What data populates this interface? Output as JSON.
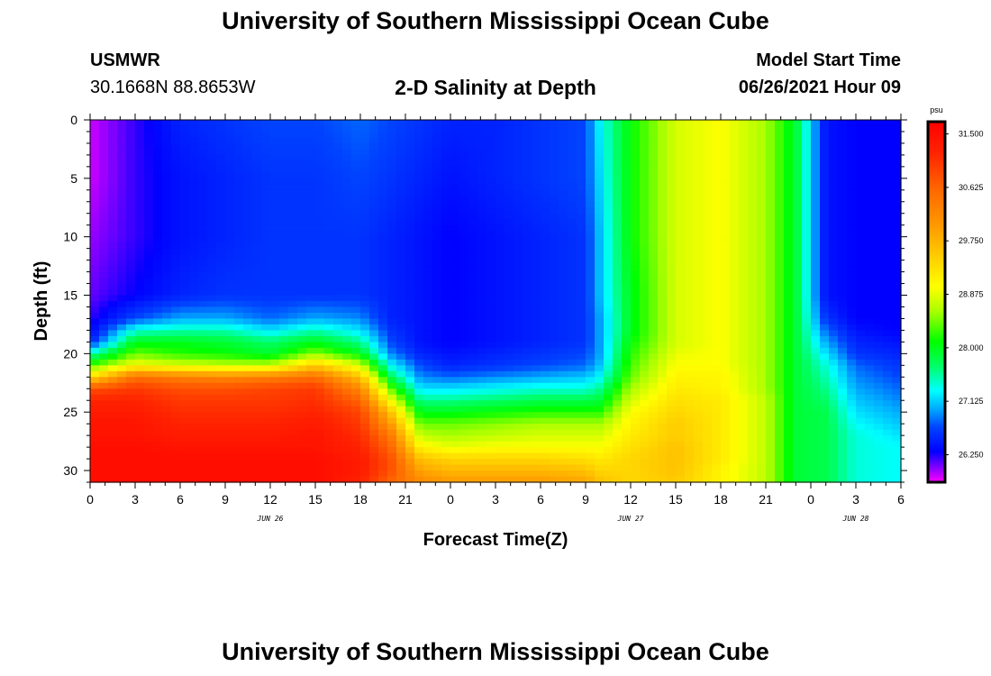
{
  "header": {
    "title": "University of Southern Mississippi Ocean Cube",
    "station": "USMWR",
    "coords": "30.1668N  88.8653W",
    "chart_title": "2-D Salinity at Depth",
    "start_label": "Model Start Time",
    "start_value": "06/26/2021 Hour 09"
  },
  "footer": {
    "title": "University of Southern Mississippi Ocean Cube"
  },
  "chart_data": {
    "type": "heatmap",
    "title": "2-D Salinity at Depth",
    "xlabel": "Forecast Time(Z)",
    "ylabel": "Depth (ft)",
    "x_range_hours": [
      0,
      54
    ],
    "ylim": [
      0,
      31
    ],
    "y_ticks": [
      0,
      5,
      10,
      15,
      20,
      25,
      30
    ],
    "x_ticks": [
      {
        "hour": 0,
        "label": "0"
      },
      {
        "hour": 3,
        "label": "3"
      },
      {
        "hour": 6,
        "label": "6"
      },
      {
        "hour": 9,
        "label": "9"
      },
      {
        "hour": 12,
        "label": "12"
      },
      {
        "hour": 15,
        "label": "15"
      },
      {
        "hour": 18,
        "label": "18"
      },
      {
        "hour": 21,
        "label": "21"
      },
      {
        "hour": 24,
        "label": "0"
      },
      {
        "hour": 27,
        "label": "3"
      },
      {
        "hour": 30,
        "label": "6"
      },
      {
        "hour": 33,
        "label": "9"
      },
      {
        "hour": 36,
        "label": "12"
      },
      {
        "hour": 39,
        "label": "15"
      },
      {
        "hour": 42,
        "label": "18"
      },
      {
        "hour": 45,
        "label": "21"
      },
      {
        "hour": 48,
        "label": "0"
      },
      {
        "hour": 51,
        "label": "3"
      },
      {
        "hour": 54,
        "label": "6"
      }
    ],
    "date_labels": [
      {
        "hour": 12,
        "label": "JUN 26"
      },
      {
        "hour": 36,
        "label": "JUN 27"
      },
      {
        "hour": 51,
        "label": "JUN 28"
      }
    ],
    "colorbar": {
      "unit": "psu",
      "min": 25.8,
      "max": 31.7,
      "ticks": [
        "31.500",
        "30.625",
        "29.750",
        "28.875",
        "28.000",
        "27.125",
        "26.250"
      ],
      "stops": [
        {
          "value": 25.8,
          "color": "#ff00ff"
        },
        {
          "value": 26.0,
          "color": "#9900ff"
        },
        {
          "value": 26.3,
          "color": "#0000ff"
        },
        {
          "value": 26.7,
          "color": "#0044ff"
        },
        {
          "value": 27.0,
          "color": "#00aaff"
        },
        {
          "value": 27.3,
          "color": "#00ffff"
        },
        {
          "value": 27.7,
          "color": "#00ff66"
        },
        {
          "value": 28.1,
          "color": "#00ff00"
        },
        {
          "value": 28.6,
          "color": "#aaff00"
        },
        {
          "value": 29.0,
          "color": "#ffff00"
        },
        {
          "value": 29.5,
          "color": "#ffcc00"
        },
        {
          "value": 30.0,
          "color": "#ff9900"
        },
        {
          "value": 30.6,
          "color": "#ff6600"
        },
        {
          "value": 31.2,
          "color": "#ff2200"
        },
        {
          "value": 31.7,
          "color": "#ff0000"
        }
      ]
    },
    "depth_levels": [
      0,
      5,
      10,
      15,
      17,
      18,
      19,
      20,
      21,
      22,
      23,
      24,
      25,
      26,
      27,
      28,
      29,
      30,
      31
    ],
    "time_hours": [
      0,
      3,
      6,
      9,
      12,
      15,
      18,
      20,
      22,
      24,
      27,
      30,
      33,
      34,
      36,
      39,
      42,
      45,
      47,
      49,
      51,
      54
    ],
    "salinity_columns": [
      [
        25.9,
        25.9,
        26.0,
        26.1,
        26.2,
        26.3,
        26.5,
        27.5,
        28.3,
        29.3,
        30.8,
        31.2,
        31.3,
        31.4,
        31.4,
        31.5,
        31.5,
        31.5,
        31.5
      ],
      [
        26.2,
        26.2,
        26.2,
        26.3,
        26.7,
        27.4,
        28.0,
        28.4,
        29.0,
        30.5,
        31.0,
        31.2,
        31.3,
        31.4,
        31.4,
        31.5,
        31.5,
        31.5,
        31.5
      ],
      [
        26.5,
        26.4,
        26.4,
        26.5,
        27.0,
        27.5,
        28.0,
        28.2,
        28.8,
        30.3,
        30.8,
        31.0,
        31.1,
        31.2,
        31.3,
        31.4,
        31.5,
        31.5,
        31.5
      ],
      [
        26.6,
        26.5,
        26.5,
        26.6,
        27.0,
        27.5,
        27.9,
        28.1,
        28.7,
        30.2,
        30.8,
        31.0,
        31.1,
        31.2,
        31.3,
        31.4,
        31.5,
        31.5,
        31.5
      ],
      [
        26.7,
        26.6,
        26.6,
        26.6,
        26.8,
        27.2,
        27.7,
        27.9,
        28.7,
        30.3,
        30.9,
        31.0,
        31.1,
        31.2,
        31.3,
        31.4,
        31.5,
        31.5,
        31.5
      ],
      [
        26.7,
        26.6,
        26.6,
        26.6,
        27.0,
        27.5,
        28.0,
        28.5,
        29.5,
        30.5,
        31.0,
        31.1,
        31.2,
        31.3,
        31.4,
        31.4,
        31.5,
        31.5,
        31.5
      ],
      [
        26.8,
        26.7,
        26.6,
        26.6,
        26.9,
        27.2,
        27.6,
        28.0,
        28.8,
        29.6,
        30.2,
        30.6,
        30.9,
        31.0,
        31.1,
        31.2,
        31.3,
        31.3,
        31.2
      ],
      [
        26.7,
        26.6,
        26.5,
        26.5,
        26.5,
        26.6,
        26.7,
        26.9,
        27.3,
        27.8,
        28.4,
        29.0,
        29.6,
        30.0,
        30.4,
        30.6,
        30.8,
        30.8,
        30.6
      ],
      [
        26.6,
        26.5,
        26.4,
        26.4,
        26.4,
        26.4,
        26.4,
        26.5,
        26.7,
        26.9,
        27.2,
        27.6,
        28.0,
        28.4,
        28.7,
        29.1,
        29.6,
        29.9,
        30.2
      ],
      [
        26.5,
        26.4,
        26.3,
        26.3,
        26.3,
        26.3,
        26.3,
        26.4,
        26.5,
        26.8,
        27.2,
        27.6,
        28.0,
        28.4,
        28.6,
        28.9,
        29.4,
        29.7,
        30.0
      ],
      [
        26.5,
        26.5,
        26.4,
        26.4,
        26.4,
        26.4,
        26.4,
        26.5,
        26.6,
        26.9,
        27.3,
        27.7,
        28.1,
        28.5,
        28.7,
        29.0,
        29.4,
        29.7,
        30.0
      ],
      [
        26.6,
        26.6,
        26.5,
        26.5,
        26.5,
        26.5,
        26.5,
        26.6,
        26.7,
        27.0,
        27.4,
        27.8,
        28.2,
        28.6,
        28.8,
        29.0,
        29.4,
        29.7,
        30.0
      ],
      [
        26.7,
        26.7,
        26.6,
        26.6,
        26.6,
        26.6,
        26.6,
        26.7,
        26.8,
        27.1,
        27.4,
        27.8,
        28.2,
        28.6,
        28.8,
        29.0,
        29.3,
        29.6,
        29.9
      ],
      [
        27.3,
        27.2,
        27.1,
        27.1,
        27.0,
        27.0,
        27.0,
        27.0,
        27.1,
        27.3,
        27.6,
        27.9,
        28.2,
        28.6,
        28.8,
        29.0,
        29.2,
        29.4,
        29.6
      ],
      [
        28.1,
        28.1,
        28.1,
        28.0,
        28.0,
        28.0,
        28.1,
        28.2,
        28.3,
        28.4,
        28.6,
        28.8,
        29.0,
        29.1,
        29.2,
        29.3,
        29.4,
        29.4,
        29.4
      ],
      [
        28.8,
        28.8,
        28.8,
        28.8,
        28.8,
        28.8,
        28.8,
        28.9,
        29.0,
        29.1,
        29.2,
        29.3,
        29.4,
        29.5,
        29.5,
        29.6,
        29.6,
        29.6,
        29.5
      ],
      [
        29.0,
        29.0,
        29.0,
        29.0,
        29.0,
        29.0,
        29.0,
        29.0,
        29.0,
        29.1,
        29.1,
        29.2,
        29.2,
        29.2,
        29.2,
        29.2,
        29.2,
        29.1,
        29.1
      ],
      [
        28.6,
        28.6,
        28.6,
        28.6,
        28.6,
        28.6,
        28.6,
        28.6,
        28.6,
        28.6,
        28.6,
        28.7,
        28.7,
        28.7,
        28.7,
        28.7,
        28.7,
        28.7,
        28.7
      ],
      [
        27.9,
        27.9,
        27.9,
        27.9,
        27.9,
        27.9,
        27.9,
        27.9,
        27.9,
        27.9,
        27.9,
        27.9,
        27.9,
        27.9,
        27.9,
        27.9,
        27.9,
        27.9,
        27.9
      ],
      [
        26.4,
        26.4,
        26.4,
        26.4,
        26.6,
        26.8,
        27.0,
        27.2,
        27.4,
        27.5,
        27.6,
        27.7,
        27.8,
        27.8,
        27.8,
        27.8,
        27.8,
        27.8,
        27.8
      ],
      [
        26.3,
        26.3,
        26.3,
        26.3,
        26.3,
        26.4,
        26.5,
        26.6,
        26.8,
        26.9,
        27.0,
        27.1,
        27.2,
        27.3,
        27.4,
        27.4,
        27.4,
        27.4,
        27.4
      ],
      [
        26.3,
        26.3,
        26.3,
        26.3,
        26.3,
        26.3,
        26.4,
        26.5,
        26.6,
        26.7,
        26.8,
        26.9,
        27.0,
        27.1,
        27.2,
        27.3,
        27.3,
        27.3,
        27.3
      ]
    ]
  }
}
